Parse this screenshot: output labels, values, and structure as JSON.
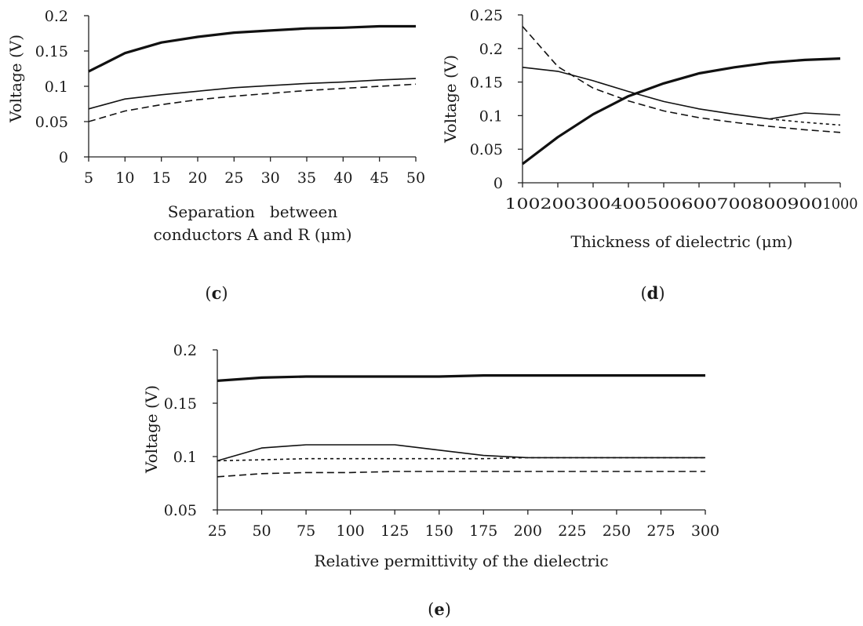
{
  "chart_data": [
    {
      "id": "c",
      "type": "line",
      "caption_letter": "c",
      "x": [
        5,
        10,
        15,
        20,
        25,
        30,
        35,
        40,
        45,
        50
      ],
      "series": [
        {
          "name": "series-thick",
          "style": "thick",
          "values": [
            0.121,
            0.147,
            0.162,
            0.17,
            0.176,
            0.179,
            0.182,
            0.183,
            0.185,
            0.185
          ]
        },
        {
          "name": "series-thin",
          "style": "thin",
          "values": [
            0.068,
            0.082,
            0.088,
            0.093,
            0.098,
            0.101,
            0.104,
            0.106,
            0.109,
            0.111
          ]
        },
        {
          "name": "series-dashed",
          "style": "dashed",
          "values": [
            0.05,
            0.065,
            0.074,
            0.081,
            0.086,
            0.09,
            0.094,
            0.097,
            0.1,
            0.103
          ]
        }
      ],
      "xticks": [
        "5",
        "10",
        "15",
        "20",
        "25",
        "30",
        "35",
        "40",
        "45",
        "50"
      ],
      "yticks": [
        "0",
        "0.05",
        "0.1",
        "0.15",
        "0.2"
      ],
      "ytick_values": [
        0,
        0.05,
        0.1,
        0.15,
        0.2
      ],
      "xlim": [
        5,
        50
      ],
      "ylim": [
        0,
        0.2
      ],
      "ylabel": "Voltage (V)",
      "xlabel_line1": "Separation   between",
      "xlabel_line2": "conductors A and R (μm)"
    },
    {
      "id": "d",
      "type": "line",
      "caption_letter": "d",
      "x": [
        100,
        200,
        300,
        400,
        500,
        600,
        700,
        800,
        900,
        1000
      ],
      "series": [
        {
          "name": "series-thick",
          "style": "thick",
          "values": [
            0.028,
            0.068,
            0.102,
            0.129,
            0.148,
            0.163,
            0.172,
            0.179,
            0.183,
            0.185
          ]
        },
        {
          "name": "series-thin",
          "style": "thin",
          "values": [
            0.172,
            0.166,
            0.152,
            0.136,
            0.121,
            0.11,
            0.102,
            0.095,
            0.104,
            0.101
          ]
        },
        {
          "name": "series-dashed",
          "style": "dashed",
          "values": [
            0.233,
            0.173,
            0.141,
            0.122,
            0.107,
            0.097,
            0.09,
            0.084,
            0.079,
            0.075
          ]
        },
        {
          "name": "series-dotted",
          "style": "dotted",
          "values": [
            null,
            null,
            null,
            null,
            null,
            null,
            null,
            0.095,
            0.09,
            0.086
          ]
        }
      ],
      "xticks": [
        "100",
        "200",
        "300",
        "400",
        "500",
        "600",
        "700",
        "800",
        "900",
        "1000"
      ],
      "yticks": [
        "0",
        "0.05",
        "0.1",
        "0.15",
        "0.2",
        "0.25"
      ],
      "ytick_values": [
        0,
        0.05,
        0.1,
        0.15,
        0.2,
        0.25
      ],
      "xlim": [
        100,
        1000
      ],
      "ylim": [
        0,
        0.25
      ],
      "ylabel": "Voltage (V)",
      "xlabel": "Thickness of dielectric (μm)"
    },
    {
      "id": "e",
      "type": "line",
      "caption_letter": "e",
      "x": [
        25,
        50,
        75,
        100,
        125,
        150,
        175,
        200,
        225,
        250,
        275,
        300
      ],
      "series": [
        {
          "name": "series-thick",
          "style": "thick",
          "values": [
            0.171,
            0.174,
            0.175,
            0.175,
            0.175,
            0.175,
            0.176,
            0.176,
            0.176,
            0.176,
            0.176,
            0.176
          ]
        },
        {
          "name": "series-thin",
          "style": "thin",
          "values": [
            0.096,
            0.108,
            0.111,
            0.111,
            0.111,
            0.106,
            0.101,
            0.099,
            0.099,
            0.099,
            0.099,
            0.099
          ]
        },
        {
          "name": "series-dotted",
          "style": "dotted",
          "values": [
            0.096,
            0.097,
            0.098,
            0.098,
            0.098,
            0.098,
            0.098,
            0.099,
            0.099,
            0.099,
            0.099,
            0.099
          ]
        },
        {
          "name": "series-dashed",
          "style": "dashed",
          "values": [
            0.081,
            0.084,
            0.085,
            0.085,
            0.086,
            0.086,
            0.086,
            0.086,
            0.086,
            0.086,
            0.086,
            0.086
          ]
        }
      ],
      "xticks": [
        "25",
        "50",
        "75",
        "100",
        "125",
        "150",
        "175",
        "200",
        "225",
        "250",
        "275",
        "300"
      ],
      "yticks": [
        "0.05",
        "0.1",
        "0.15",
        "0.2"
      ],
      "ytick_values": [
        0.05,
        0.1,
        0.15,
        0.2
      ],
      "xlim": [
        25,
        300
      ],
      "ylim": [
        0.05,
        0.2
      ],
      "ylabel": "Voltage (V)",
      "xlabel": "Relative permittivity of the dielectric"
    }
  ]
}
